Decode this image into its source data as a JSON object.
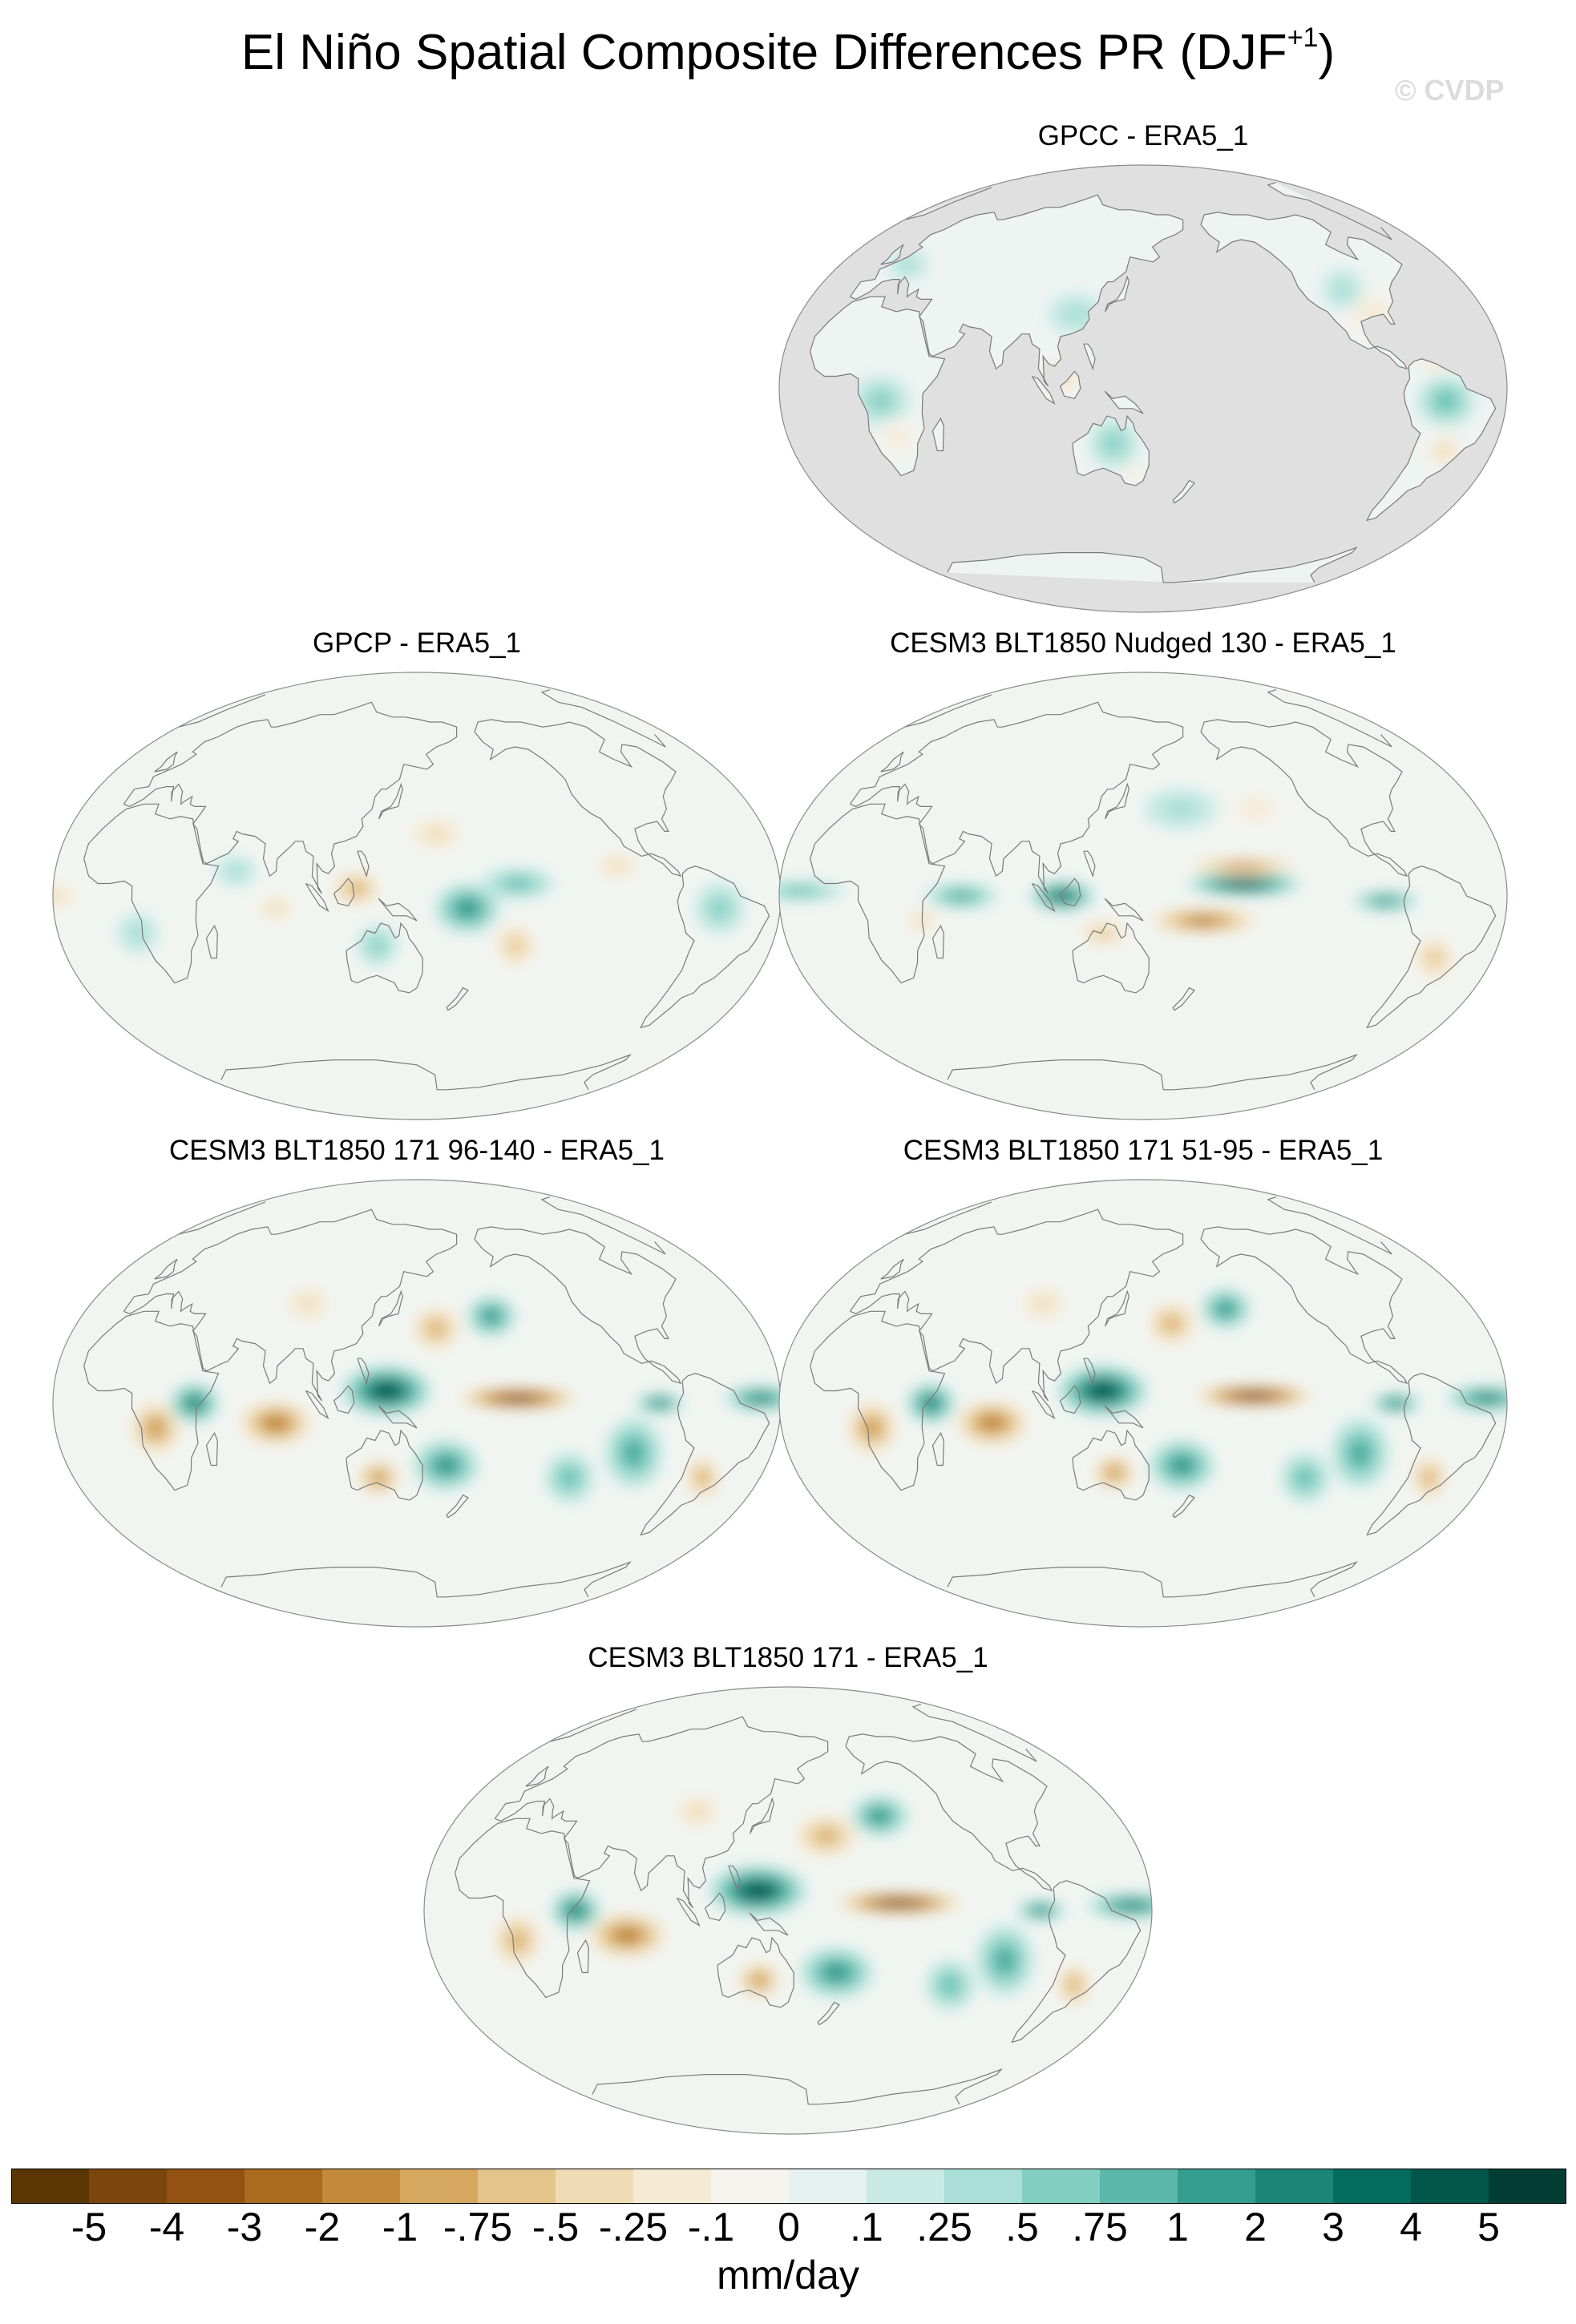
{
  "title": {
    "main": "El Niño Spatial Composite Differences PR (DJF",
    "superscript": "+1",
    "close": ")"
  },
  "watermark": "© CVDP",
  "panels": [
    {
      "title": "GPCC - ERA5_1",
      "land_only": true,
      "pattern": "gpcc"
    },
    {
      "title": "GPCP - ERA5_1",
      "land_only": false,
      "pattern": "gpcp"
    },
    {
      "title": "CESM3 BLT1850 Nudged 130 - ERA5_1",
      "land_only": false,
      "pattern": "nudged"
    },
    {
      "title": "CESM3 BLT1850 171 96-140 - ERA5_1",
      "land_only": false,
      "pattern": "strong"
    },
    {
      "title": "CESM3 BLT1850 171 51-95 - ERA5_1",
      "land_only": false,
      "pattern": "strong2"
    },
    {
      "title": "CESM3 BLT1850 171 - ERA5_1",
      "land_only": false,
      "pattern": "strong3"
    }
  ],
  "colorbar": {
    "tick_labels": [
      "-5",
      "-4",
      "-3",
      "-2",
      "-1",
      "-.75",
      "-.5",
      "-.25",
      "-.1",
      "0",
      ".1",
      ".25",
      ".5",
      ".75",
      "1",
      "2",
      "3",
      "4",
      "5"
    ],
    "colors": [
      "#5a3605",
      "#7a460b",
      "#935212",
      "#aa6b1f",
      "#c48a3b",
      "#d5a75f",
      "#e3c48b",
      "#efdcb4",
      "#f5ead4",
      "#f5f3ee",
      "#e6f2f0",
      "#c9eae4",
      "#a9dfd6",
      "#83cfc2",
      "#5bb8aa",
      "#349d90",
      "#1d8478",
      "#046b5f",
      "#01574a",
      "#013d33"
    ],
    "units": "mm/day"
  }
}
